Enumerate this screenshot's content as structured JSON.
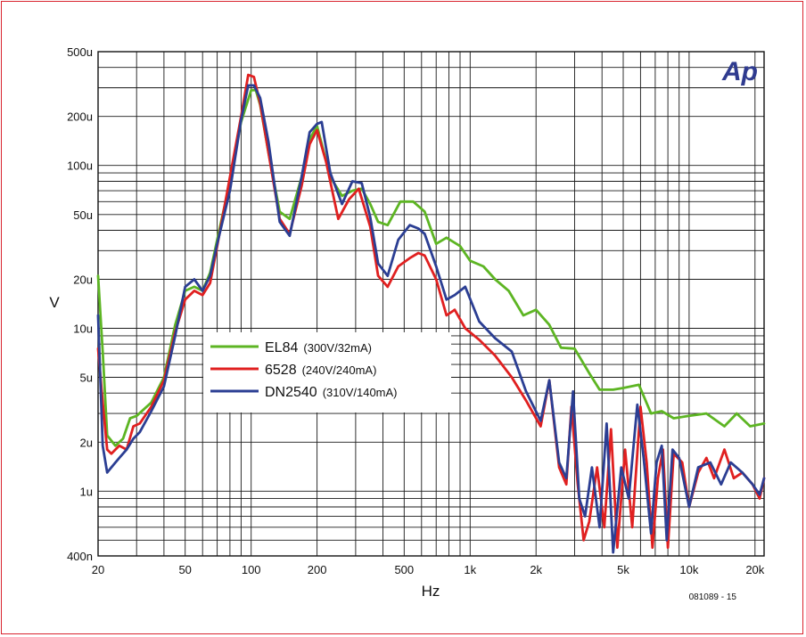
{
  "brand": {
    "logo_text": "Ap",
    "logo_color": "#2f3b8f",
    "frame_color": "#d9232e"
  },
  "figure_code": "081089 - 15",
  "chart_data": {
    "type": "line",
    "title": "",
    "xlabel": "Hz",
    "ylabel": "V",
    "x_scale": "log",
    "y_scale": "log",
    "xlim": [
      20,
      22000
    ],
    "ylim": [
      0.0004,
      0.0005
    ],
    "ylim_note": "",
    "grid": true,
    "legend_position": "center-left",
    "x_ticks": [
      {
        "value": 20,
        "label": "20"
      },
      {
        "value": 50,
        "label": "50"
      },
      {
        "value": 100,
        "label": "100"
      },
      {
        "value": 200,
        "label": "200"
      },
      {
        "value": 500,
        "label": "500"
      },
      {
        "value": 1000,
        "label": "1k"
      },
      {
        "value": 2000,
        "label": "2k"
      },
      {
        "value": 5000,
        "label": "5k"
      },
      {
        "value": 10000,
        "label": "10k"
      },
      {
        "value": 20000,
        "label": "20k"
      }
    ],
    "y_ticks": [
      {
        "value": 4e-07,
        "label": "400n"
      },
      {
        "value": 1e-06,
        "label": "1u"
      },
      {
        "value": 2e-06,
        "label": "2u"
      },
      {
        "value": 5e-06,
        "label": "5u"
      },
      {
        "value": 1e-05,
        "label": "10u"
      },
      {
        "value": 2e-05,
        "label": "20u"
      },
      {
        "value": 5e-05,
        "label": "50u"
      },
      {
        "value": 0.0001,
        "label": "100u"
      },
      {
        "value": 0.0002,
        "label": "200u"
      },
      {
        "value": 0.0005,
        "label": "500u"
      }
    ],
    "series": [
      {
        "name": "EL84",
        "detail": "(300V/32mA)",
        "color": "#5db523",
        "points": [
          [
            20,
            2.1e-05
          ],
          [
            21,
            7.2e-06
          ],
          [
            22,
            2.2e-06
          ],
          [
            24,
            1.9e-06
          ],
          [
            26,
            2.1e-06
          ],
          [
            28,
            2.8e-06
          ],
          [
            30,
            2.9e-06
          ],
          [
            35,
            3.5e-06
          ],
          [
            40,
            5e-06
          ],
          [
            45,
            1.05e-05
          ],
          [
            50,
            1.7e-05
          ],
          [
            55,
            1.8e-05
          ],
          [
            60,
            1.7e-05
          ],
          [
            65,
            2.2e-05
          ],
          [
            70,
            3.5e-05
          ],
          [
            80,
            8e-05
          ],
          [
            90,
            0.000185
          ],
          [
            100,
            0.00029
          ],
          [
            105,
            0.00029
          ],
          [
            110,
            0.000235
          ],
          [
            120,
            0.00012
          ],
          [
            135,
            5.2e-05
          ],
          [
            150,
            4.7e-05
          ],
          [
            170,
            8.5e-05
          ],
          [
            185,
            0.000145
          ],
          [
            200,
            0.000175
          ],
          [
            230,
            8.5e-05
          ],
          [
            260,
            6.5e-05
          ],
          [
            290,
            7e-05
          ],
          [
            320,
            7.2e-05
          ],
          [
            350,
            5.8e-05
          ],
          [
            380,
            4.5e-05
          ],
          [
            420,
            4.3e-05
          ],
          [
            480,
            6e-05
          ],
          [
            550,
            6e-05
          ],
          [
            620,
            5.2e-05
          ],
          [
            700,
            3.3e-05
          ],
          [
            780,
            3.6e-05
          ],
          [
            900,
            3.2e-05
          ],
          [
            1000,
            2.6e-05
          ],
          [
            1150,
            2.4e-05
          ],
          [
            1300,
            2e-05
          ],
          [
            1500,
            1.7e-05
          ],
          [
            1750,
            1.2e-05
          ],
          [
            2000,
            1.3e-05
          ],
          [
            2300,
            1.05e-05
          ],
          [
            2600,
            7.6e-06
          ],
          [
            3000,
            7.5e-06
          ],
          [
            3500,
            5.3e-06
          ],
          [
            3900,
            4.2e-06
          ],
          [
            4500,
            4.2e-06
          ],
          [
            5000,
            4.3e-06
          ],
          [
            5900,
            4.5e-06
          ],
          [
            6700,
            3e-06
          ],
          [
            7500,
            3.1e-06
          ],
          [
            8500,
            2.8e-06
          ],
          [
            10000,
            2.9e-06
          ],
          [
            12000,
            3e-06
          ],
          [
            14500,
            2.5e-06
          ],
          [
            16500,
            3e-06
          ],
          [
            19000,
            2.5e-06
          ],
          [
            22000,
            2.6e-06
          ]
        ]
      },
      {
        "name": "6528",
        "detail": "(240V/240mA)",
        "color": "#e02020",
        "points": [
          [
            20,
            7.5e-06
          ],
          [
            21,
            3.5e-06
          ],
          [
            22,
            1.8e-06
          ],
          [
            23,
            1.7e-06
          ],
          [
            25,
            1.9e-06
          ],
          [
            27,
            1.8e-06
          ],
          [
            29,
            2.5e-06
          ],
          [
            31,
            2.6e-06
          ],
          [
            35,
            3.3e-06
          ],
          [
            40,
            4.8e-06
          ],
          [
            45,
            9.5e-06
          ],
          [
            50,
            1.5e-05
          ],
          [
            55,
            1.7e-05
          ],
          [
            60,
            1.6e-05
          ],
          [
            65,
            1.9e-05
          ],
          [
            70,
            3.2e-05
          ],
          [
            80,
            8.5e-05
          ],
          [
            90,
            0.0002
          ],
          [
            97,
            0.00036
          ],
          [
            103,
            0.00035
          ],
          [
            110,
            0.00024
          ],
          [
            120,
            0.00012
          ],
          [
            135,
            4.7e-05
          ],
          [
            150,
            3.8e-05
          ],
          [
            170,
            7.5e-05
          ],
          [
            185,
            0.000135
          ],
          [
            200,
            0.000165
          ],
          [
            220,
            0.000105
          ],
          [
            250,
            4.7e-05
          ],
          [
            280,
            6.2e-05
          ],
          [
            310,
            7.2e-05
          ],
          [
            350,
            4.2e-05
          ],
          [
            380,
            2.1e-05
          ],
          [
            420,
            1.8e-05
          ],
          [
            470,
            2.4e-05
          ],
          [
            530,
            2.7e-05
          ],
          [
            580,
            2.9e-05
          ],
          [
            620,
            2.8e-05
          ],
          [
            700,
            2e-05
          ],
          [
            780,
            1.2e-05
          ],
          [
            850,
            1.3e-05
          ],
          [
            950,
            1e-05
          ],
          [
            1100,
            8.5e-06
          ],
          [
            1300,
            6.8e-06
          ],
          [
            1550,
            5e-06
          ],
          [
            1800,
            3.6e-06
          ],
          [
            2100,
            2.5e-06
          ],
          [
            2300,
            4.8e-06
          ],
          [
            2550,
            1.4e-06
          ],
          [
            2750,
            1.1e-06
          ],
          [
            2900,
            3.3e-06
          ],
          [
            3100,
            1.1e-06
          ],
          [
            3300,
            5e-07
          ],
          [
            3500,
            6.5e-07
          ],
          [
            3800,
            1.4e-06
          ],
          [
            4100,
            6e-07
          ],
          [
            4400,
            2.4e-06
          ],
          [
            4700,
            4.5e-07
          ],
          [
            5100,
            1.8e-06
          ],
          [
            5500,
            6e-07
          ],
          [
            6000,
            3.3e-06
          ],
          [
            6400,
            1.5e-06
          ],
          [
            6800,
            4.5e-07
          ],
          [
            7200,
            1.2e-06
          ],
          [
            7600,
            1.8e-06
          ],
          [
            8000,
            4.5e-07
          ],
          [
            8500,
            1.7e-06
          ],
          [
            9300,
            1.5e-06
          ],
          [
            10000,
            8e-07
          ],
          [
            11000,
            1.3e-06
          ],
          [
            12000,
            1.6e-06
          ],
          [
            13000,
            1.2e-06
          ],
          [
            14500,
            1.8e-06
          ],
          [
            16000,
            1.2e-06
          ],
          [
            17500,
            1.3e-06
          ],
          [
            19500,
            1.1e-06
          ],
          [
            21000,
            9e-07
          ],
          [
            22000,
            1.2e-06
          ]
        ]
      },
      {
        "name": "DN2540",
        "detail": "(310V/140mA)",
        "color": "#2b3e93",
        "points": [
          [
            20,
            1.2e-05
          ],
          [
            21,
            1.9e-06
          ],
          [
            22,
            1.3e-06
          ],
          [
            23,
            1.4e-06
          ],
          [
            25,
            1.6e-06
          ],
          [
            27,
            1.8e-06
          ],
          [
            29,
            2.1e-06
          ],
          [
            31,
            2.3e-06
          ],
          [
            35,
            3.1e-06
          ],
          [
            40,
            4.4e-06
          ],
          [
            45,
            9e-06
          ],
          [
            50,
            1.8e-05
          ],
          [
            55,
            2e-05
          ],
          [
            60,
            1.7e-05
          ],
          [
            65,
            2.1e-05
          ],
          [
            70,
            3.3e-05
          ],
          [
            80,
            7e-05
          ],
          [
            90,
            0.00019
          ],
          [
            97,
            0.00031
          ],
          [
            103,
            0.00031
          ],
          [
            110,
            0.00026
          ],
          [
            120,
            0.00014
          ],
          [
            135,
            4.5e-05
          ],
          [
            150,
            3.7e-05
          ],
          [
            170,
            8.5e-05
          ],
          [
            185,
            0.00016
          ],
          [
            200,
            0.00018
          ],
          [
            210,
            0.000185
          ],
          [
            230,
            9e-05
          ],
          [
            260,
            5.8e-05
          ],
          [
            290,
            8e-05
          ],
          [
            320,
            7.8e-05
          ],
          [
            350,
            4.8e-05
          ],
          [
            380,
            2.5e-05
          ],
          [
            420,
            2.1e-05
          ],
          [
            470,
            3.5e-05
          ],
          [
            530,
            4.3e-05
          ],
          [
            580,
            4.1e-05
          ],
          [
            620,
            3.8e-05
          ],
          [
            700,
            2.4e-05
          ],
          [
            780,
            1.5e-05
          ],
          [
            850,
            1.6e-05
          ],
          [
            950,
            1.8e-05
          ],
          [
            1100,
            1.1e-05
          ],
          [
            1300,
            8.7e-06
          ],
          [
            1550,
            7.2e-06
          ],
          [
            1800,
            4.1e-06
          ],
          [
            2100,
            2.7e-06
          ],
          [
            2300,
            4.8e-06
          ],
          [
            2550,
            1.5e-06
          ],
          [
            2750,
            1.2e-06
          ],
          [
            2950,
            4.1e-06
          ],
          [
            3150,
            9e-07
          ],
          [
            3350,
            7e-07
          ],
          [
            3600,
            1.4e-06
          ],
          [
            3900,
            6e-07
          ],
          [
            4200,
            2.6e-06
          ],
          [
            4500,
            4.2e-07
          ],
          [
            4900,
            1.4e-06
          ],
          [
            5300,
            9e-07
          ],
          [
            5800,
            3.4e-06
          ],
          [
            6200,
            1.6e-06
          ],
          [
            6700,
            5.5e-07
          ],
          [
            7100,
            1.5e-06
          ],
          [
            7500,
            1.9e-06
          ],
          [
            7900,
            5e-07
          ],
          [
            8400,
            1.8e-06
          ],
          [
            9000,
            1.6e-06
          ],
          [
            10000,
            8e-07
          ],
          [
            11000,
            1.4e-06
          ],
          [
            12500,
            1.5e-06
          ],
          [
            14000,
            1.1e-06
          ],
          [
            15500,
            1.5e-06
          ],
          [
            17500,
            1.3e-06
          ],
          [
            19500,
            1.1e-06
          ],
          [
            21000,
            9.5e-07
          ],
          [
            22000,
            1.2e-06
          ]
        ]
      }
    ]
  }
}
